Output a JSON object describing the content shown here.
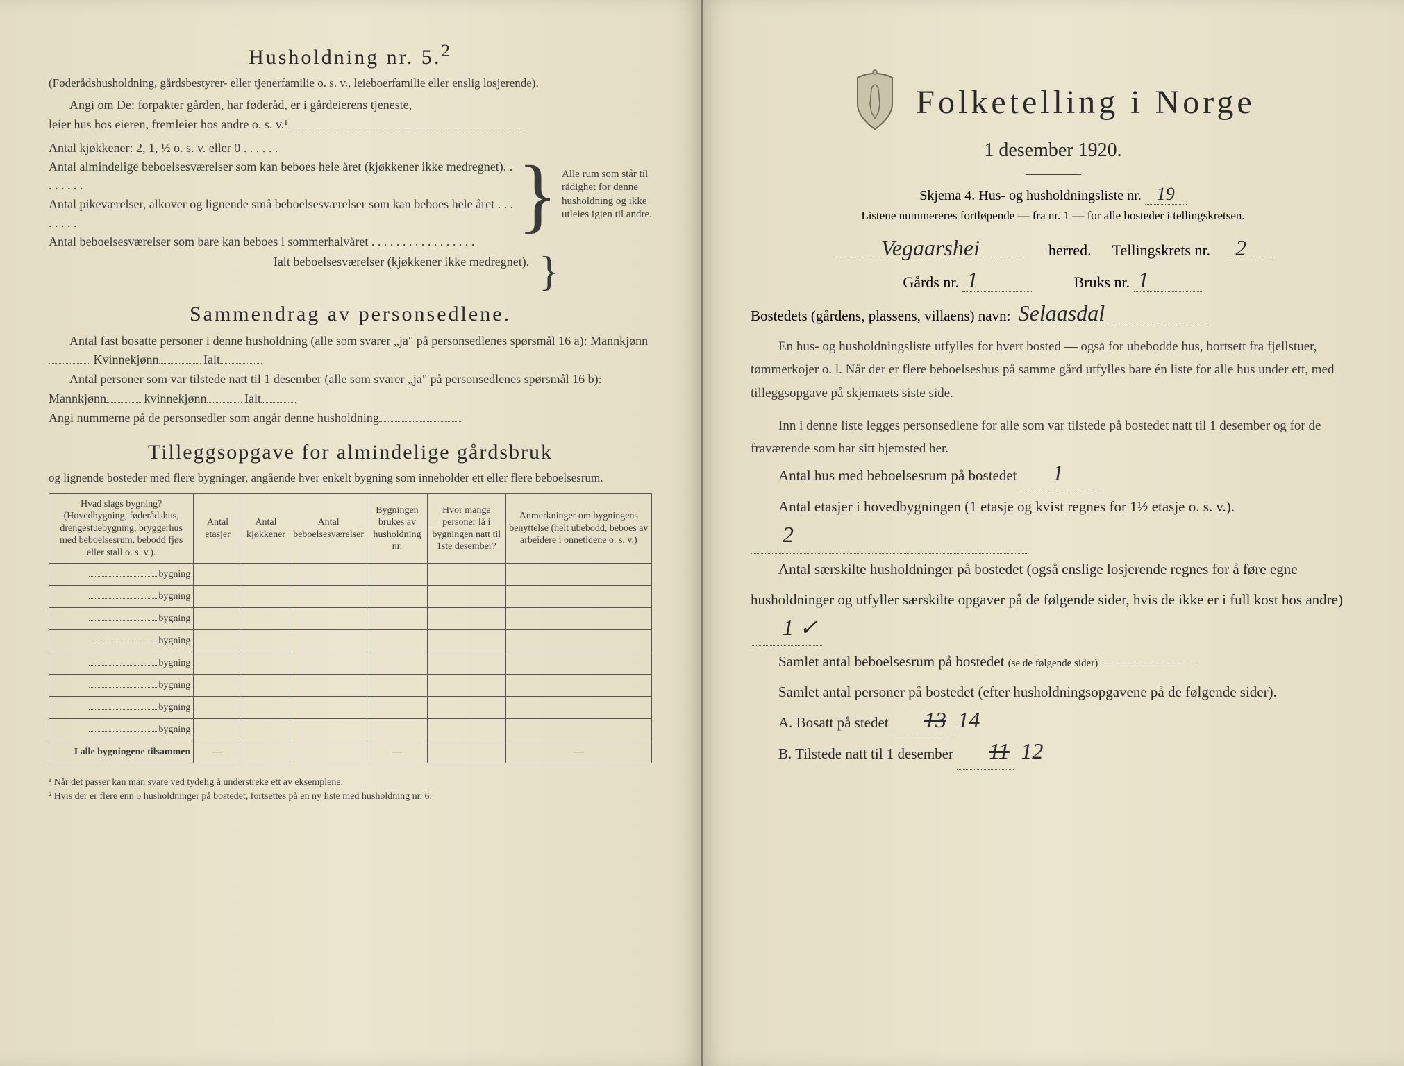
{
  "left": {
    "h5_title": "Husholdning nr. 5.",
    "h5_sup": "2",
    "h5_sub": "(Føderådshusholdning, gårdsbestyrer- eller tjenerfamilie o. s. v., leieboerfamilie eller enslig losjerende).",
    "angi_line1": "Angi om De: forpakter gården, har føderåd, er i gårdeierens tjeneste,",
    "angi_line2": "leier hus hos eieren, fremleier hos andre o. s. v.¹",
    "kjokken_line": "Antal kjøkkener: 2, 1, ½ o. s. v. eller 0 . . . . . .",
    "brace_l1": "Antal almindelige beboelsesværelser som kan beboes hele året (kjøkkener ikke medregnet). . . . . . . .",
    "brace_l2": "Antal pikeværelser, alkover og lignende små beboelsesværelser som kan beboes hele året . . . . . . . .",
    "brace_l3": "Antal beboelsesværelser som bare kan beboes i sommerhalvåret . . . . . . . . . . . . . . . . .",
    "brace_right": "Alle rum som står til rådighet for denne husholdning og ikke utleies igjen til andre.",
    "ialt_line": "Ialt beboelsesværelser (kjøkkener ikke medregnet).",
    "sammen_title": "Sammendrag av personsedlene.",
    "sammen_p1a": "Antal fast bosatte personer i denne husholdning (alle som svarer „ja\" på personsedlenes spørsmål 16 a): Mannkjønn",
    "sammen_p1b": "Kvinnekjønn",
    "sammen_p1c": "Ialt",
    "sammen_p2a": "Antal personer som var tilstede natt til 1 desember (alle som svarer „ja\" på personsedlenes spørsmål 16 b): Mannkjønn",
    "sammen_p2b": "kvinnekjønn",
    "sammen_p2c": "Ialt",
    "sammen_p3": "Angi nummerne på de personsedler som angår denne husholdning",
    "tillegg_title": "Tilleggsopgave for almindelige gårdsbruk",
    "tillegg_sub": "og lignende bosteder med flere bygninger, angående hver enkelt bygning som inneholder ett eller flere beboelsesrum.",
    "table": {
      "headers": [
        "Hvad slags bygning?\n(Hovedbygning, føderådshus, drengestuebygning, bryggerhus med beboelsesrum, bebodd fjøs eller stall o. s. v.).",
        "Antal etasjer",
        "Antal kjøkkener",
        "Antal beboelsesværelser",
        "Bygningen brukes av husholdning nr.",
        "Hvor mange personer lå i bygningen natt til 1ste desember?",
        "Anmerkninger om bygningens benyttelse (helt ubebodd, beboes av arbeidere i onnetidene o. s. v.)"
      ],
      "row_label": "bygning",
      "row_count": 8,
      "sum_label": "I alle bygningene tilsammen",
      "dash": "—"
    },
    "foot1": "¹ Når det passer kan man svare ved tydelig å understreke ett av eksemplene.",
    "foot2": "² Hvis der er flere enn 5 husholdninger på bostedet, fortsettes på en ny liste med husholdning nr. 6."
  },
  "right": {
    "main_title": "Folketelling i Norge",
    "date": "1 desember 1920.",
    "skjema_a": "Skjema 4.   Hus- og husholdningsliste nr.",
    "skjema_nr": "19",
    "listnote": "Listene nummereres fortløpende — fra nr. 1 — for alle bosteder i tellingskretsen.",
    "herred_val": "Vegaarshei",
    "herred_lbl": "herred.",
    "krets_lbl": "Tellingskrets nr.",
    "krets_val": "2",
    "gard_lbl": "Gårds nr.",
    "gard_val": "1",
    "bruk_lbl": "Bruks nr.",
    "bruk_val": "1",
    "bosted_lbl": "Bostedets (gårdens, plassens, villaens) navn:",
    "bosted_val": "Selaasdal",
    "para1": "En hus- og husholdningsliste utfylles for hvert bosted — også for ubebodde hus, bortsett fra fjellstuer, tømmerkojer o. l. Når der er flere beboelseshus på samme gård utfylles bare én liste for alle hus under ett, med tilleggsopgave på skjemaets siste side.",
    "para2": "Inn i denne liste legges personsedlene for alle som var tilstede på bostedet natt til 1 desember og for de fraværende som har sitt hjemsted her.",
    "f1_lbl": "Antal hus med beboelsesrum på bostedet",
    "f1_val": "1",
    "f2_lbl_a": "Antal etasjer i hovedbygningen (1 etasje og kvist regnes for 1½ etasje o. s. v.).",
    "f2_val": "2",
    "f3_lbl": "Antal særskilte husholdninger på bostedet (også enslige losjerende regnes for å føre egne husholdninger og utfyller særskilte opgaver på de følgende sider, hvis de ikke er i full kost hos andre)",
    "f3_val": "1 ✓",
    "f4_lbl": "Samlet antal beboelsesrum på bostedet",
    "f4_note": "(se de følgende sider)",
    "f5_lbl": "Samlet antal personer på bostedet (efter husholdningsopgavene på de følgende sider).",
    "fA_lbl": "A.  Bosatt på stedet",
    "fA_val1": "13",
    "fA_val2": "14",
    "fB_lbl": "B.  Tilstede natt til 1 desember",
    "fB_val1": "11",
    "fB_val2": "12",
    "crest_colors": {
      "stroke": "#6b6b5b",
      "fill": "#c9c3a9"
    }
  },
  "colors": {
    "paper": "#e8e2cc",
    "ink": "#2a2a2a",
    "rule": "#555555"
  }
}
